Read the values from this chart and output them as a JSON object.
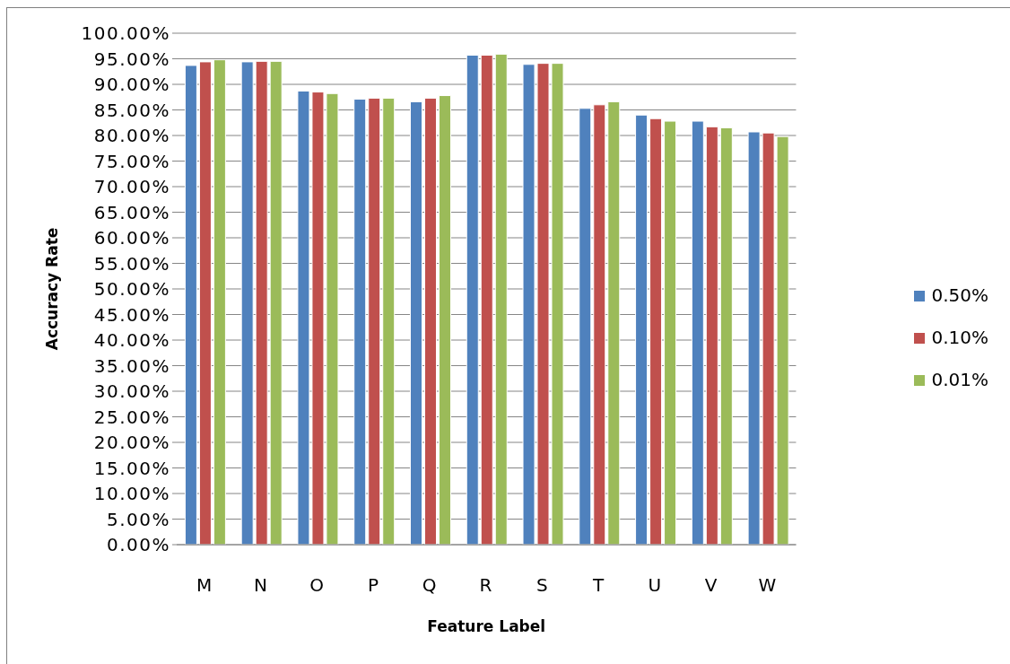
{
  "chart_data": {
    "type": "bar",
    "xlabel": "Feature Label",
    "ylabel": "Accuracy Rate",
    "categories": [
      "M",
      "N",
      "O",
      "P",
      "Q",
      "R",
      "S",
      "T",
      "U",
      "V",
      "W"
    ],
    "series": [
      {
        "name": "0.50%",
        "color": "#4f81bd",
        "values": [
          93.7,
          94.4,
          88.7,
          87.1,
          86.6,
          95.7,
          93.9,
          85.3,
          84.0,
          82.8,
          80.7
        ]
      },
      {
        "name": "0.10%",
        "color": "#c0504d",
        "values": [
          94.4,
          94.5,
          88.5,
          87.3,
          87.3,
          95.7,
          94.1,
          86.0,
          83.3,
          81.7,
          80.5
        ]
      },
      {
        "name": "0.01%",
        "color": "#9bbb59",
        "values": [
          94.8,
          94.5,
          88.2,
          87.3,
          87.8,
          95.9,
          94.1,
          86.6,
          82.8,
          81.5,
          79.8
        ]
      }
    ],
    "ylim": [
      0,
      100
    ],
    "yticks": [
      {
        "value": 0,
        "label": "0.00%"
      },
      {
        "value": 5,
        "label": "5.00%"
      },
      {
        "value": 10,
        "label": "10.00%"
      },
      {
        "value": 15,
        "label": "15.00%"
      },
      {
        "value": 20,
        "label": "20.00%"
      },
      {
        "value": 25,
        "label": "25.00%"
      },
      {
        "value": 30,
        "label": "30.00%"
      },
      {
        "value": 35,
        "label": "35.00%"
      },
      {
        "value": 40,
        "label": "40.00%"
      },
      {
        "value": 45,
        "label": "45.00%"
      },
      {
        "value": 50,
        "label": "50.00%"
      },
      {
        "value": 55,
        "label": "55.00%"
      },
      {
        "value": 60,
        "label": "60.00%"
      },
      {
        "value": 65,
        "label": "65.00%"
      },
      {
        "value": 70,
        "label": "70.00%"
      },
      {
        "value": 75,
        "label": "75.00%"
      },
      {
        "value": 80,
        "label": "80.00%"
      },
      {
        "value": 85,
        "label": "85.00%"
      },
      {
        "value": 90,
        "label": "90.00%"
      },
      {
        "value": 95,
        "label": "95.00%"
      },
      {
        "value": 100,
        "label": "100.00%"
      }
    ],
    "grid": "y",
    "legend": "right"
  }
}
